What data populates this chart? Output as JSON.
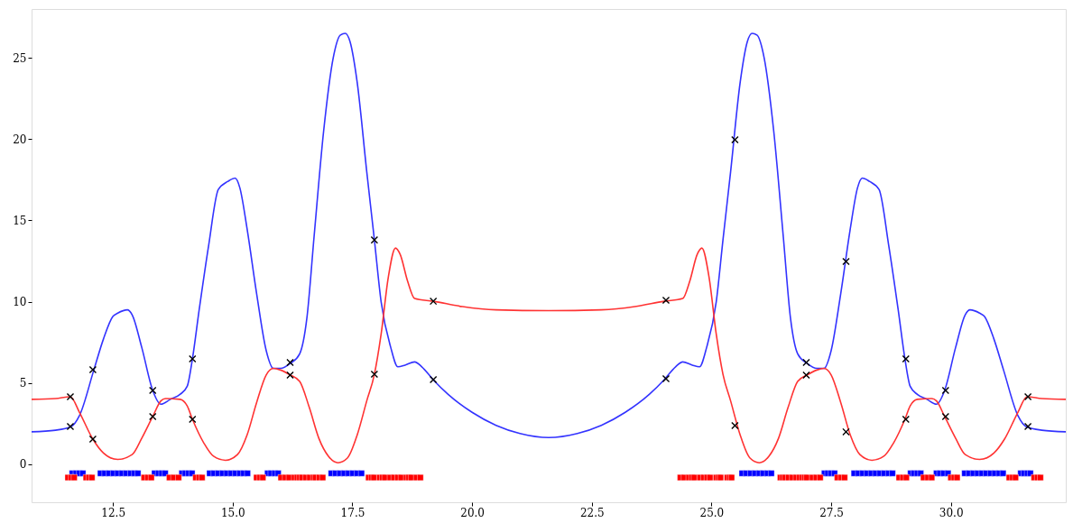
{
  "chart_data": {
    "type": "line",
    "xlim": [
      10.8,
      32.4
    ],
    "ylim": [
      -2.33,
      28.0
    ],
    "xticks": [
      {
        "value": 12.5,
        "label": "12.5"
      },
      {
        "value": 15,
        "label": "15.0"
      },
      {
        "value": 17.5,
        "label": "17.5"
      },
      {
        "value": 20,
        "label": "20.0"
      },
      {
        "value": 22.5,
        "label": "22.5"
      },
      {
        "value": 25,
        "label": "25.0"
      },
      {
        "value": 27.5,
        "label": "27.5"
      },
      {
        "value": 30,
        "label": "30.0"
      }
    ],
    "yticks": [
      0,
      5,
      10,
      15,
      20,
      25
    ],
    "grid": false,
    "line_style": "solid",
    "series": [
      {
        "color": "#3333ff",
        "x": [
          10.8,
          11.3,
          11.63,
          11.8,
          12.1,
          12.3,
          12.5,
          12.6,
          12.8,
          12.9,
          13.1,
          13.33,
          13.5,
          13.7,
          13.9,
          14.05,
          14.16,
          14.3,
          14.5,
          14.7,
          14.9,
          15.05,
          15.15,
          15.3,
          15.5,
          15.7,
          15.85,
          16.0,
          16.2,
          16.4,
          16.55,
          16.7,
          16.9,
          17.1,
          17.25,
          17.35,
          17.45,
          17.6,
          17.8,
          17.96,
          18.1,
          18.3,
          18.45,
          18.6,
          18.8,
          18.95,
          19.19,
          19.5,
          20.0,
          20.5,
          21.0,
          21.6,
          22.2,
          22.7,
          23.2,
          23.7,
          24.01,
          24.25,
          24.4,
          24.6,
          24.75,
          24.9,
          25.1,
          25.24,
          25.4,
          25.6,
          25.75,
          25.85,
          25.95,
          26.1,
          26.3,
          26.5,
          26.65,
          26.8,
          27.0,
          27.2,
          27.35,
          27.5,
          27.7,
          27.9,
          28.05,
          28.15,
          28.3,
          28.5,
          28.7,
          28.9,
          29.04,
          29.15,
          29.3,
          29.5,
          29.7,
          29.87,
          30.1,
          30.3,
          30.4,
          30.6,
          30.7,
          30.9,
          31.1,
          31.4,
          31.57,
          31.9,
          32.4
        ],
        "values": [
          2.0,
          2.1,
          2.33,
          3,
          5.8,
          7.7,
          9.1,
          9.3,
          9.5,
          9.2,
          7.2,
          4.55,
          3.7,
          4.0,
          4.3,
          4.8,
          6.5,
          9.5,
          13.5,
          16.9,
          17.4,
          17.6,
          17.0,
          14.5,
          10.5,
          7,
          5.9,
          5.9,
          6.2,
          6.8,
          9,
          14,
          20.5,
          25,
          26.4,
          26.5,
          26.0,
          23.5,
          18,
          13.8,
          10,
          7.2,
          6.0,
          6.1,
          6.3,
          6.0,
          5.2,
          4.3,
          3.2,
          2.4,
          1.9,
          1.65,
          1.9,
          2.4,
          3.2,
          4.3,
          5.2,
          6.0,
          6.3,
          6.1,
          6.0,
          7.2,
          10,
          13.8,
          18,
          23.5,
          26.0,
          26.5,
          26.4,
          25,
          20.5,
          14,
          9,
          6.8,
          6.2,
          5.9,
          5.9,
          7,
          10.5,
          14.5,
          17.0,
          17.6,
          17.4,
          16.9,
          13.5,
          9.5,
          6.5,
          4.8,
          4.3,
          4.0,
          3.7,
          4.55,
          7.2,
          9.2,
          9.5,
          9.3,
          9.1,
          7.7,
          5.8,
          3,
          2.33,
          2.1,
          2.0
        ]
      },
      {
        "color": "#ff3333",
        "x": [
          10.8,
          11.3,
          11.61,
          11.8,
          12.08,
          12.3,
          12.6,
          12.9,
          13.1,
          13.33,
          13.5,
          13.6,
          13.9,
          14.05,
          14.16,
          14.4,
          14.6,
          14.85,
          15.1,
          15.3,
          15.5,
          15.7,
          15.85,
          16.0,
          16.2,
          16.4,
          16.6,
          16.8,
          17.0,
          17.2,
          17.4,
          17.6,
          17.8,
          17.96,
          18.1,
          18.25,
          18.4,
          18.5,
          18.65,
          18.8,
          19.19,
          19.8,
          20.5,
          21.6,
          22.7,
          23.4,
          24.01,
          24.4,
          24.55,
          24.7,
          24.8,
          24.95,
          25.1,
          25.24,
          25.4,
          25.6,
          25.8,
          26.0,
          26.2,
          26.4,
          26.6,
          26.8,
          27.0,
          27.2,
          27.35,
          27.5,
          27.7,
          27.9,
          28.1,
          28.35,
          28.6,
          28.8,
          29.04,
          29.15,
          29.3,
          29.6,
          29.7,
          29.87,
          30.1,
          30.3,
          30.6,
          30.9,
          31.12,
          31.4,
          31.59,
          31.9,
          32.4
        ],
        "values": [
          4.0,
          4.05,
          4.16,
          3.2,
          1.55,
          0.7,
          0.3,
          0.6,
          1.6,
          2.94,
          3.9,
          4.05,
          4.0,
          3.6,
          2.77,
          1.3,
          0.5,
          0.25,
          0.6,
          1.8,
          3.8,
          5.5,
          5.9,
          5.8,
          5.5,
          5.1,
          3.5,
          1.6,
          0.5,
          0.1,
          0.4,
          1.8,
          3.9,
          5.54,
          8,
          11.5,
          13.3,
          12.9,
          11.3,
          10.2,
          10.03,
          9.7,
          9.5,
          9.45,
          9.5,
          9.7,
          10.03,
          10.2,
          11.3,
          12.9,
          13.3,
          11.5,
          8,
          5.54,
          3.9,
          1.8,
          0.4,
          0.1,
          0.5,
          1.6,
          3.5,
          5.1,
          5.5,
          5.8,
          5.9,
          5.5,
          3.8,
          1.8,
          0.6,
          0.25,
          0.5,
          1.3,
          2.77,
          3.6,
          4.0,
          4.05,
          3.9,
          2.94,
          1.6,
          0.6,
          0.3,
          0.7,
          1.55,
          3.2,
          4.16,
          4.05,
          4.0
        ]
      },
      {
        "type": "scatter",
        "marker": "square",
        "color": "#0000ff",
        "x": [
          11.65,
          11.73,
          11.8,
          11.87,
          12.24,
          12.33,
          12.42,
          12.51,
          12.6,
          12.69,
          12.78,
          12.87,
          12.95,
          13.02,
          13.37,
          13.45,
          13.52,
          13.59,
          13.94,
          14.01,
          14.08,
          14.15,
          14.52,
          14.61,
          14.7,
          14.79,
          14.88,
          14.97,
          15.06,
          15.15,
          15.23,
          15.31,
          15.73,
          15.8,
          15.88,
          15.95,
          17.06,
          17.15,
          17.24,
          17.33,
          17.42,
          17.51,
          17.6,
          17.69,
          25.64,
          25.73,
          25.82,
          25.91,
          26.0,
          26.08,
          26.17,
          26.25,
          27.36,
          27.43,
          27.5,
          27.57,
          27.98,
          28.07,
          28.16,
          28.25,
          28.34,
          28.43,
          28.52,
          28.61,
          28.7,
          28.78,
          29.16,
          29.23,
          29.3,
          29.37,
          29.7,
          29.77,
          29.85,
          29.94,
          30.29,
          30.38,
          30.47,
          30.56,
          30.65,
          30.74,
          30.83,
          30.92,
          31.01,
          31.09,
          31.46,
          31.53,
          31.6,
          31.66
        ],
        "values": [
          -0.55,
          -0.55,
          -0.55,
          -0.55,
          -0.55,
          -0.55,
          -0.55,
          -0.55,
          -0.55,
          -0.55,
          -0.55,
          -0.55,
          -0.55,
          -0.55,
          -0.55,
          -0.55,
          -0.55,
          -0.55,
          -0.55,
          -0.55,
          -0.55,
          -0.55,
          -0.55,
          -0.55,
          -0.55,
          -0.55,
          -0.55,
          -0.55,
          -0.55,
          -0.55,
          -0.55,
          -0.55,
          -0.55,
          -0.55,
          -0.55,
          -0.55,
          -0.55,
          -0.55,
          -0.55,
          -0.55,
          -0.55,
          -0.55,
          -0.55,
          -0.55,
          -0.55,
          -0.55,
          -0.55,
          -0.55,
          -0.55,
          -0.55,
          -0.55,
          -0.55,
          -0.55,
          -0.55,
          -0.55,
          -0.55,
          -0.55,
          -0.55,
          -0.55,
          -0.55,
          -0.55,
          -0.55,
          -0.55,
          -0.55,
          -0.55,
          -0.55,
          -0.55,
          -0.55,
          -0.55,
          -0.55,
          -0.55,
          -0.55,
          -0.55,
          -0.55,
          -0.55,
          -0.55,
          -0.55,
          -0.55,
          -0.55,
          -0.55,
          -0.55,
          -0.55,
          -0.55,
          -0.55,
          -0.55,
          -0.55,
          -0.55,
          -0.55
        ]
      },
      {
        "type": "scatter",
        "marker": "square",
        "color": "#ff0000",
        "x": [
          11.56,
          11.63,
          11.69,
          11.94,
          12.0,
          12.06,
          13.15,
          13.23,
          13.3,
          13.68,
          13.77,
          13.87,
          14.23,
          14.3,
          14.36,
          15.5,
          15.57,
          15.63,
          16.01,
          16.1,
          16.18,
          16.29,
          16.35,
          16.4,
          16.45,
          16.53,
          16.61,
          16.69,
          16.73,
          16.81,
          16.88,
          17.84,
          17.9,
          17.95,
          18.07,
          18.13,
          18.18,
          18.29,
          18.37,
          18.45,
          18.52,
          18.63,
          18.68,
          18.73,
          18.84,
          18.92,
          24.35,
          24.43,
          24.53,
          24.59,
          24.64,
          24.76,
          24.84,
          24.91,
          24.97,
          25.1,
          25.15,
          25.19,
          25.33,
          25.38,
          25.42,
          26.44,
          26.49,
          26.54,
          26.61,
          26.69,
          26.77,
          26.84,
          26.9,
          26.95,
          26.99,
          27.11,
          27.19,
          27.27,
          27.63,
          27.71,
          27.78,
          28.92,
          29.0,
          29.07,
          29.43,
          29.52,
          29.6,
          30.0,
          30.07,
          30.13,
          31.22,
          31.29,
          31.35,
          31.74,
          31.81,
          31.87
        ],
        "values": [
          -0.81,
          -0.81,
          -0.81,
          -0.81,
          -0.81,
          -0.81,
          -0.81,
          -0.81,
          -0.81,
          -0.81,
          -0.81,
          -0.81,
          -0.81,
          -0.81,
          -0.81,
          -0.81,
          -0.81,
          -0.81,
          -0.81,
          -0.81,
          -0.81,
          -0.81,
          -0.81,
          -0.81,
          -0.81,
          -0.81,
          -0.81,
          -0.81,
          -0.81,
          -0.81,
          -0.81,
          -0.81,
          -0.81,
          -0.81,
          -0.81,
          -0.81,
          -0.81,
          -0.81,
          -0.81,
          -0.81,
          -0.81,
          -0.81,
          -0.81,
          -0.81,
          -0.81,
          -0.81,
          -0.81,
          -0.81,
          -0.81,
          -0.81,
          -0.81,
          -0.81,
          -0.81,
          -0.81,
          -0.81,
          -0.81,
          -0.81,
          -0.81,
          -0.81,
          -0.81,
          -0.81,
          -0.81,
          -0.81,
          -0.81,
          -0.81,
          -0.81,
          -0.81,
          -0.81,
          -0.81,
          -0.81,
          -0.81,
          -0.81,
          -0.81,
          -0.81,
          -0.81,
          -0.81,
          -0.81,
          -0.81,
          -0.81,
          -0.81,
          -0.81,
          -0.81,
          -0.81,
          -0.81,
          -0.81,
          -0.81,
          -0.81,
          -0.81,
          -0.81,
          -0.81,
          -0.81,
          -0.81
        ]
      },
      {
        "type": "scatter",
        "marker": "cross",
        "color": "#000000",
        "x": [
          11.61,
          11.61,
          12.08,
          12.08,
          13.33,
          13.33,
          14.16,
          14.16,
          16.2,
          16.2,
          17.96,
          17.96,
          19.19,
          19.19,
          24.05,
          24.05,
          25.49,
          25.49,
          26.98,
          26.98,
          27.81,
          27.81,
          29.06,
          29.06,
          29.89,
          29.89,
          31.61,
          31.61
        ],
        "values": [
          4.16,
          2.33,
          5.82,
          1.55,
          4.55,
          2.94,
          6.49,
          2.77,
          6.26,
          5.49,
          13.8,
          5.54,
          10.03,
          5.21,
          10.09,
          5.27,
          19.96,
          2.38,
          6.26,
          5.49,
          12.47,
          2.0,
          6.49,
          2.77,
          4.55,
          2.94,
          4.16,
          2.33
        ]
      }
    ]
  }
}
